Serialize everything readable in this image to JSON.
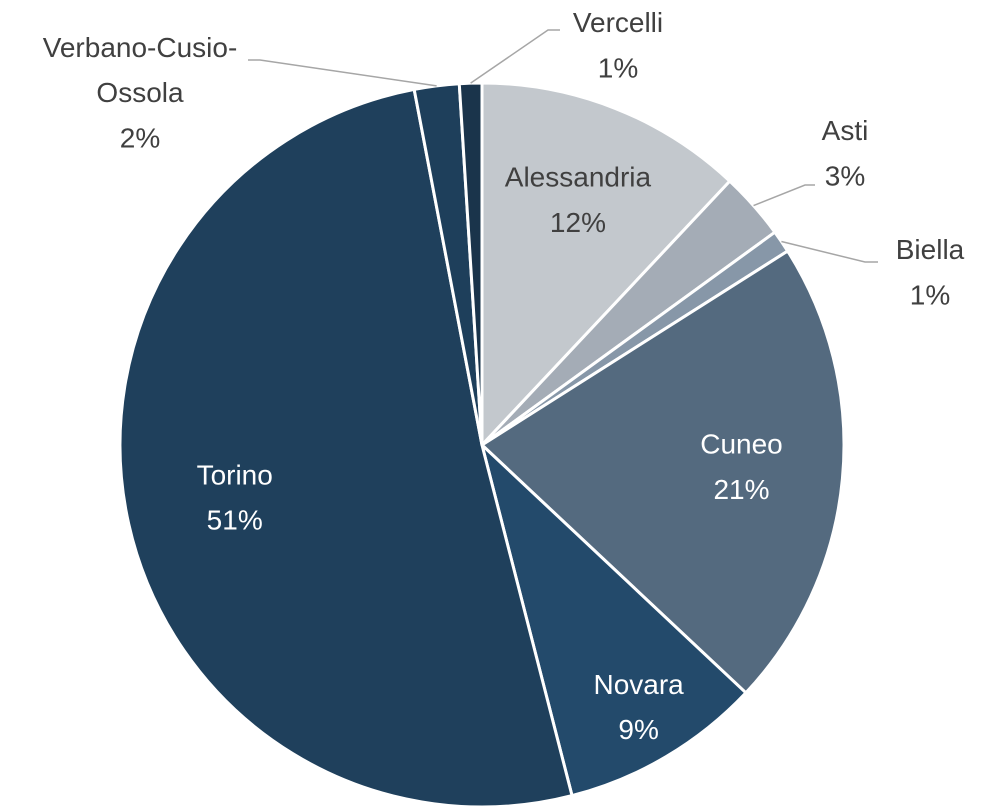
{
  "chart_data": {
    "type": "pie",
    "categories": [
      "Alessandria",
      "Asti",
      "Biella",
      "Cuneo",
      "Novara",
      "Torino",
      "Verbano-Cusio-Ossola",
      "Vercelli"
    ],
    "values": [
      12,
      3,
      1,
      21,
      9,
      51,
      2,
      1
    ],
    "value_labels": [
      "12%",
      "3%",
      "1%",
      "21%",
      "9%",
      "51%",
      "2%",
      "1%"
    ],
    "colors": [
      "#c3c8cd",
      "#a4acb6",
      "#8797a8",
      "#546a7f",
      "#234a6b",
      "#1f405c",
      "#1e3f5b",
      "#1a344b"
    ]
  }
}
